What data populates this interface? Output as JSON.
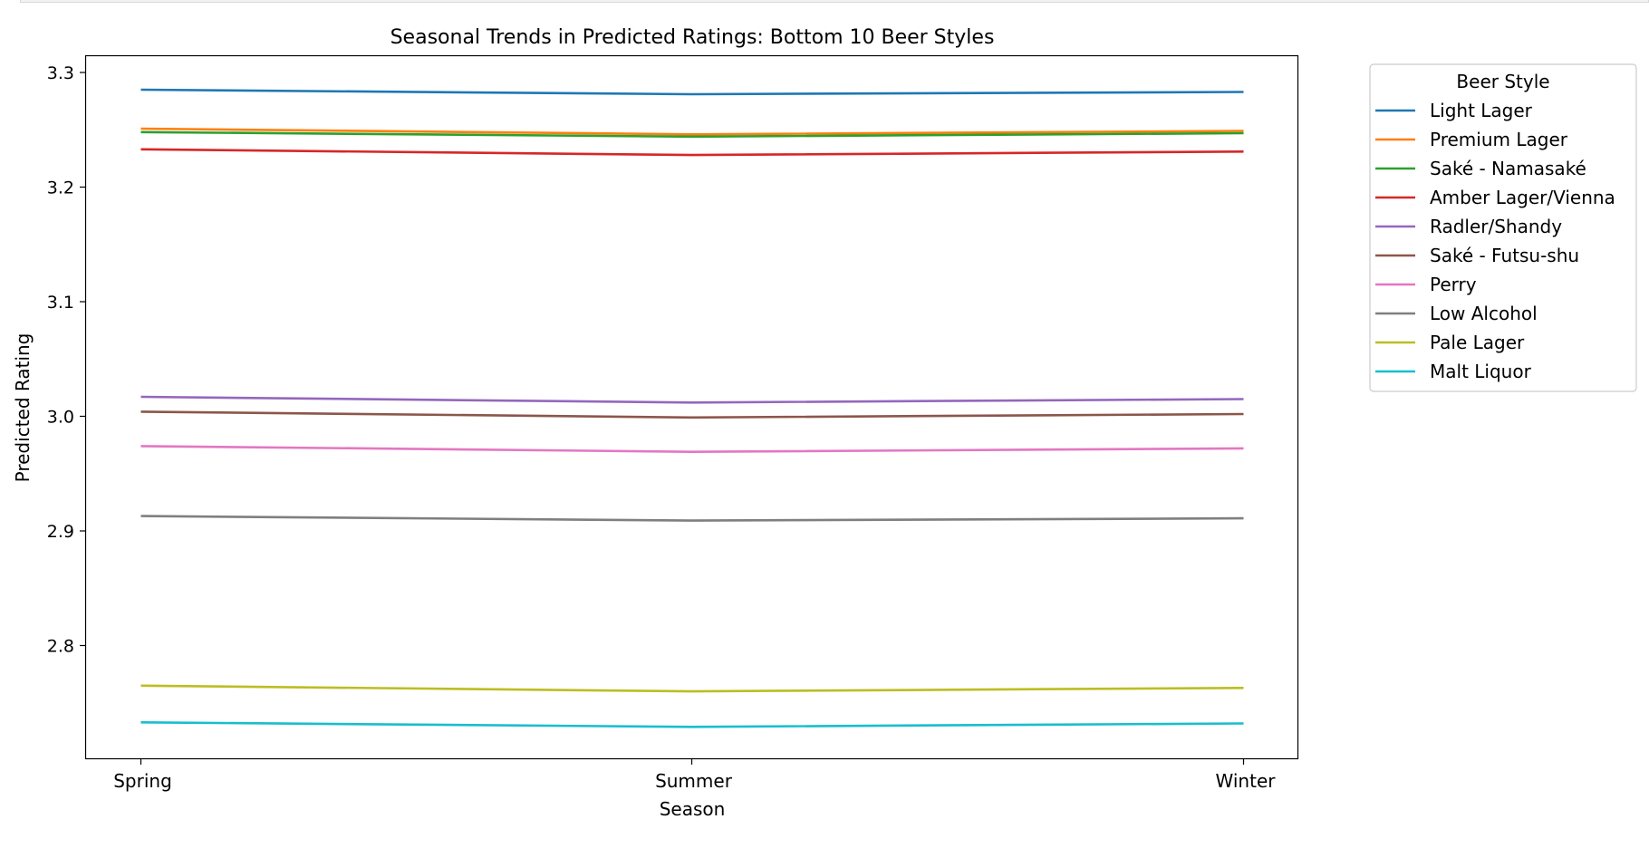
{
  "chart_data": {
    "type": "line",
    "title": "Seasonal Trends in Predicted Ratings: Bottom 10 Beer Styles",
    "xlabel": "Season",
    "ylabel": "Predicted Rating",
    "categories": [
      "Spring",
      "Summer",
      "Winter"
    ],
    "ylim": [
      2.7,
      3.31
    ],
    "yticks": [
      2.8,
      2.9,
      3.0,
      3.1,
      3.2,
      3.3
    ],
    "ytick_labels": [
      "2.8",
      "2.9",
      "3.0",
      "3.1",
      "3.2",
      "3.3"
    ],
    "grid": false,
    "legend": {
      "title": "Beer Style",
      "placement": "outside upper right"
    },
    "series": [
      {
        "name": "Light Lager",
        "color": "#1f77b4",
        "values": [
          3.285,
          3.281,
          3.283
        ]
      },
      {
        "name": "Premium Lager",
        "color": "#ff7f0e",
        "values": [
          3.251,
          3.246,
          3.249
        ]
      },
      {
        "name": "Saké - Namasaké",
        "color": "#2ca02c",
        "values": [
          3.248,
          3.244,
          3.247
        ]
      },
      {
        "name": "Amber Lager/Vienna",
        "color": "#d62728",
        "values": [
          3.233,
          3.228,
          3.231
        ]
      },
      {
        "name": "Radler/Shandy",
        "color": "#9467bd",
        "values": [
          3.017,
          3.012,
          3.015
        ]
      },
      {
        "name": "Saké - Futsu-shu",
        "color": "#8c564b",
        "values": [
          3.004,
          2.999,
          3.002
        ]
      },
      {
        "name": "Perry",
        "color": "#e377c2",
        "values": [
          2.974,
          2.969,
          2.972
        ]
      },
      {
        "name": "Low Alcohol",
        "color": "#7f7f7f",
        "values": [
          2.913,
          2.909,
          2.911
        ]
      },
      {
        "name": "Pale Lager",
        "color": "#bcbd22",
        "values": [
          2.765,
          2.76,
          2.763
        ]
      },
      {
        "name": "Malt Liquor",
        "color": "#17becf",
        "values": [
          2.733,
          2.729,
          2.732
        ]
      }
    ]
  }
}
